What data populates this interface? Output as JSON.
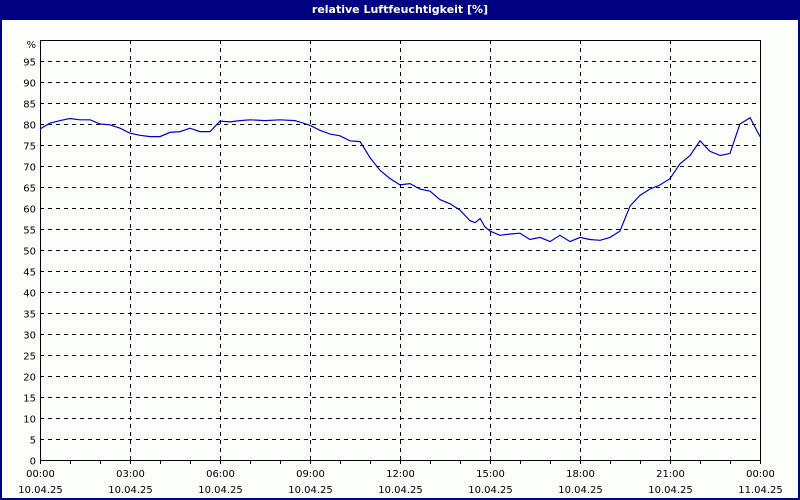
{
  "window": {
    "title": "relative Luftfeuchtigkeit [%]"
  },
  "colors": {
    "titlebar": "#000080",
    "background": "#fcfefc",
    "line": "#0000cc",
    "grid": "#000000"
  },
  "chart_data": {
    "type": "line",
    "title": "relative Luftfeuchtigkeit [%]",
    "xlabel": "",
    "ylabel": "%",
    "ylim": [
      0,
      100
    ],
    "yticks": [
      0,
      5,
      10,
      15,
      20,
      25,
      30,
      35,
      40,
      45,
      50,
      55,
      60,
      65,
      70,
      75,
      80,
      85,
      90,
      95
    ],
    "xlim_hours": [
      0,
      24
    ],
    "grid": true,
    "xtick_labels": [
      {
        "time": "00:00",
        "date": "10.04.25",
        "h": 0
      },
      {
        "time": "03:00",
        "date": "10.04.25",
        "h": 3
      },
      {
        "time": "06:00",
        "date": "10.04.25",
        "h": 6
      },
      {
        "time": "09:00",
        "date": "10.04.25",
        "h": 9
      },
      {
        "time": "12:00",
        "date": "10.04.25",
        "h": 12
      },
      {
        "time": "15:00",
        "date": "10.04.25",
        "h": 15
      },
      {
        "time": "18:00",
        "date": "10.04.25",
        "h": 18
      },
      {
        "time": "21:00",
        "date": "10.04.25",
        "h": 21
      },
      {
        "time": "00:00",
        "date": "11.04.25",
        "h": 24
      }
    ],
    "series": [
      {
        "name": "relative Luftfeuchtigkeit",
        "x_hours": [
          0,
          0.33,
          0.67,
          1.0,
          1.33,
          1.67,
          2.0,
          2.33,
          2.67,
          3.0,
          3.33,
          3.67,
          4.0,
          4.33,
          4.67,
          5.0,
          5.33,
          5.67,
          6.0,
          6.33,
          6.67,
          7.0,
          7.5,
          8.0,
          8.5,
          9.0,
          9.33,
          9.67,
          10.0,
          10.33,
          10.67,
          11.0,
          11.33,
          11.67,
          12.0,
          12.33,
          12.67,
          13.0,
          13.33,
          13.67,
          14.0,
          14.33,
          14.5,
          14.67,
          14.83,
          15.0,
          15.33,
          15.67,
          16.0,
          16.33,
          16.67,
          17.0,
          17.33,
          17.67,
          18.0,
          18.33,
          18.67,
          19.0,
          19.33,
          19.67,
          20.0,
          20.33,
          20.67,
          21.0,
          21.33,
          21.67,
          22.0,
          22.33,
          22.67,
          23.0,
          23.33,
          23.67,
          24.0
        ],
        "values": [
          78.8,
          80.2,
          80.8,
          81.3,
          81.0,
          81.0,
          80.0,
          79.8,
          79.0,
          77.8,
          77.3,
          77.0,
          77.0,
          78.0,
          78.2,
          79.0,
          78.2,
          78.2,
          80.7,
          80.5,
          80.8,
          81.0,
          80.8,
          81.0,
          80.8,
          79.7,
          78.5,
          77.6,
          77.2,
          76.0,
          75.8,
          72.0,
          69.0,
          67.0,
          65.5,
          65.8,
          64.5,
          64.0,
          62.0,
          61.0,
          59.5,
          57.0,
          56.5,
          57.5,
          55.5,
          54.5,
          53.5,
          53.8,
          54.0,
          52.5,
          53.0,
          52.0,
          53.5,
          52.0,
          53.0,
          52.5,
          52.3,
          53.0,
          54.5,
          60.5,
          63.0,
          64.5,
          65.5,
          67.0,
          70.5,
          72.5,
          76.0,
          73.5,
          72.5,
          73.0,
          80.0,
          81.5,
          77.0
        ]
      }
    ]
  }
}
